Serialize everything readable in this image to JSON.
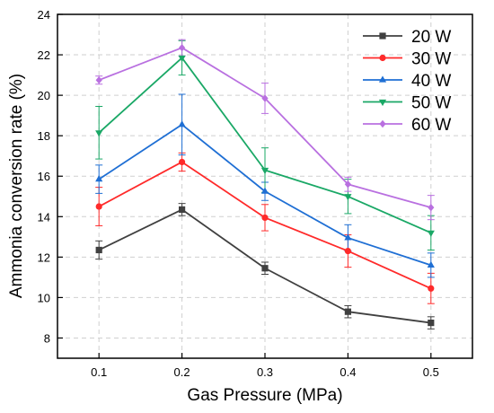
{
  "chart_data": {
    "type": "line",
    "title": "",
    "xlabel": "Gas Pressure (MPa)",
    "ylabel": "Ammonia conversion rate (%)",
    "x": [
      0.1,
      0.2,
      0.3,
      0.4,
      0.5
    ],
    "x_tick_labels": [
      "0.1",
      "0.2",
      "0.3",
      "0.4",
      "0.5"
    ],
    "xlim": [
      0.05,
      0.55
    ],
    "ylim": [
      7,
      24
    ],
    "y_ticks": [
      8,
      10,
      12,
      14,
      16,
      18,
      20,
      22,
      24
    ],
    "y_tick_labels": [
      "8",
      "10",
      "12",
      "14",
      "16",
      "18",
      "20",
      "22",
      "24"
    ],
    "grid": true,
    "legend_position": "top-right",
    "error_bars": true,
    "series": [
      {
        "name": "20 W",
        "color": "#404040",
        "marker": "square",
        "values": [
          12.35,
          14.35,
          11.45,
          9.3,
          8.75
        ],
        "errors": [
          0.45,
          0.3,
          0.3,
          0.3,
          0.3
        ]
      },
      {
        "name": "30 W",
        "color": "#ff2a2a",
        "marker": "circle",
        "values": [
          14.5,
          16.7,
          13.95,
          12.3,
          10.45
        ],
        "errors": [
          0.95,
          0.45,
          0.65,
          0.8,
          0.75
        ]
      },
      {
        "name": "40 W",
        "color": "#1f6fd4",
        "marker": "triangle-up",
        "values": [
          15.85,
          18.55,
          15.25,
          12.95,
          11.6
        ],
        "errors": [
          0.7,
          1.5,
          0.45,
          0.65,
          0.6
        ]
      },
      {
        "name": "50 W",
        "color": "#1aa866",
        "marker": "triangle-down",
        "values": [
          18.15,
          21.85,
          16.3,
          15.0,
          13.2
        ],
        "errors": [
          1.3,
          0.85,
          1.1,
          0.85,
          0.85
        ]
      },
      {
        "name": "60 W",
        "color": "#b970e0",
        "marker": "diamond",
        "values": [
          20.75,
          22.35,
          19.85,
          15.6,
          14.45
        ],
        "errors": [
          0.2,
          0.4,
          0.75,
          0.35,
          0.6
        ]
      }
    ]
  }
}
